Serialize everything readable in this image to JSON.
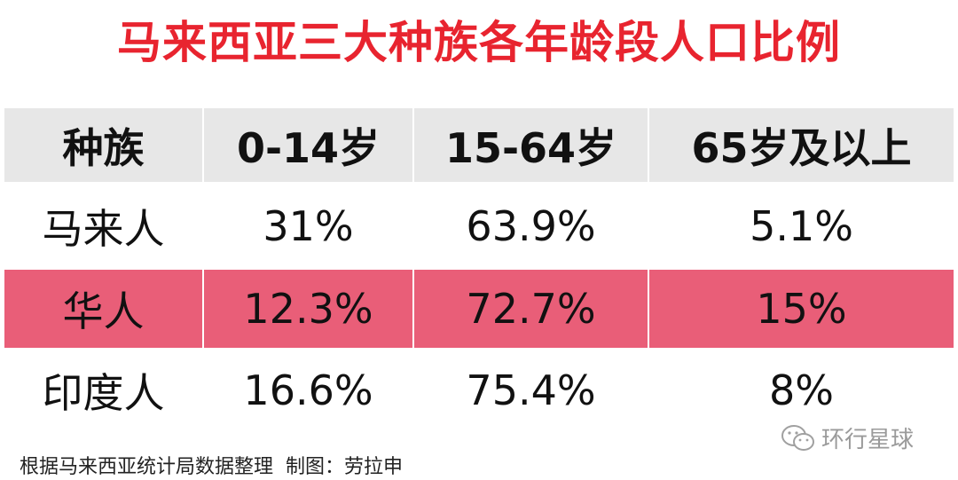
{
  "title": "马来西亚三大种族各年龄段人口比例",
  "table": {
    "header": [
      "种族",
      "0-14岁",
      "15-64岁",
      "65岁及以上"
    ],
    "rows": [
      [
        "马来人",
        "31%",
        "63.9%",
        "5.1%"
      ],
      [
        "华人",
        "12.3%",
        "72.7%",
        "15%"
      ],
      [
        "印度人",
        "16.6%",
        "75.4%",
        "8%"
      ]
    ],
    "highlight_row": 1,
    "highlight_color": "#e95e78",
    "header_color": "#e7e7e7"
  },
  "footer": {
    "source": "根据马来西亚统计局数据整理  制图：劳拉申",
    "watermark": "环行星球"
  }
}
